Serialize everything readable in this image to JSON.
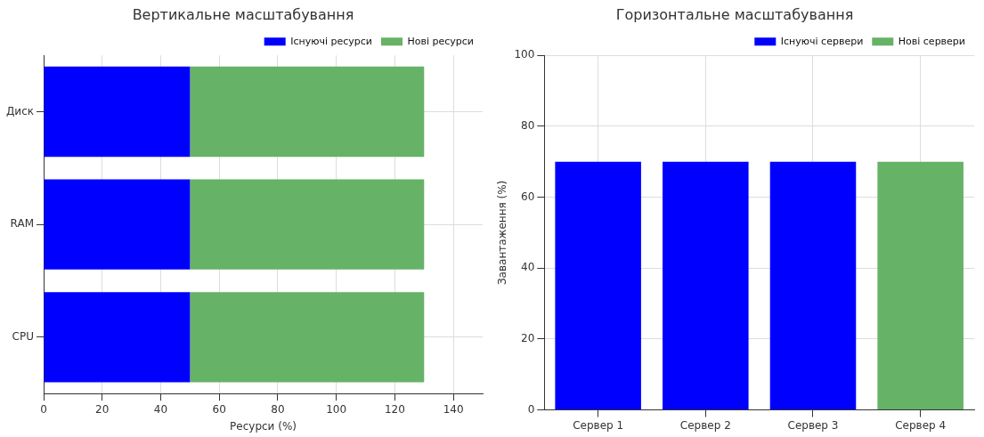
{
  "chart_data": [
    {
      "type": "bar",
      "title": "Вертикальне масштабування",
      "xlabel": "Ресурси (%)",
      "orientation": "horizontal",
      "stacked": true,
      "categories": [
        "Диск",
        "RAM",
        "CPU"
      ],
      "series": [
        {
          "name": "Існуючі ресурси",
          "color": "#0000ff",
          "values": [
            50,
            50,
            50
          ]
        },
        {
          "name": "Нові ресурси",
          "color": "#66b266",
          "values": [
            80,
            80,
            80
          ]
        }
      ],
      "xlim": [
        0,
        150
      ],
      "xticks": [
        0,
        20,
        40,
        60,
        80,
        100,
        120,
        140
      ],
      "grid": true,
      "legend": "top right"
    },
    {
      "type": "bar",
      "title": "Горизонтальне масштабування",
      "ylabel": "Завантаження (%)",
      "categories": [
        "Сервер 1",
        "Сервер 2",
        "Сервер 3",
        "Сервер 4"
      ],
      "series": [
        {
          "name": "Існуючі сервери",
          "color": "#0000ff",
          "values": [
            70,
            70,
            70,
            null
          ]
        },
        {
          "name": "Нові сервери",
          "color": "#66b266",
          "values": [
            null,
            null,
            null,
            70
          ]
        }
      ],
      "ylim": [
        0,
        100
      ],
      "yticks": [
        0,
        20,
        40,
        60,
        80,
        100
      ],
      "grid": true,
      "legend": "top right"
    }
  ]
}
